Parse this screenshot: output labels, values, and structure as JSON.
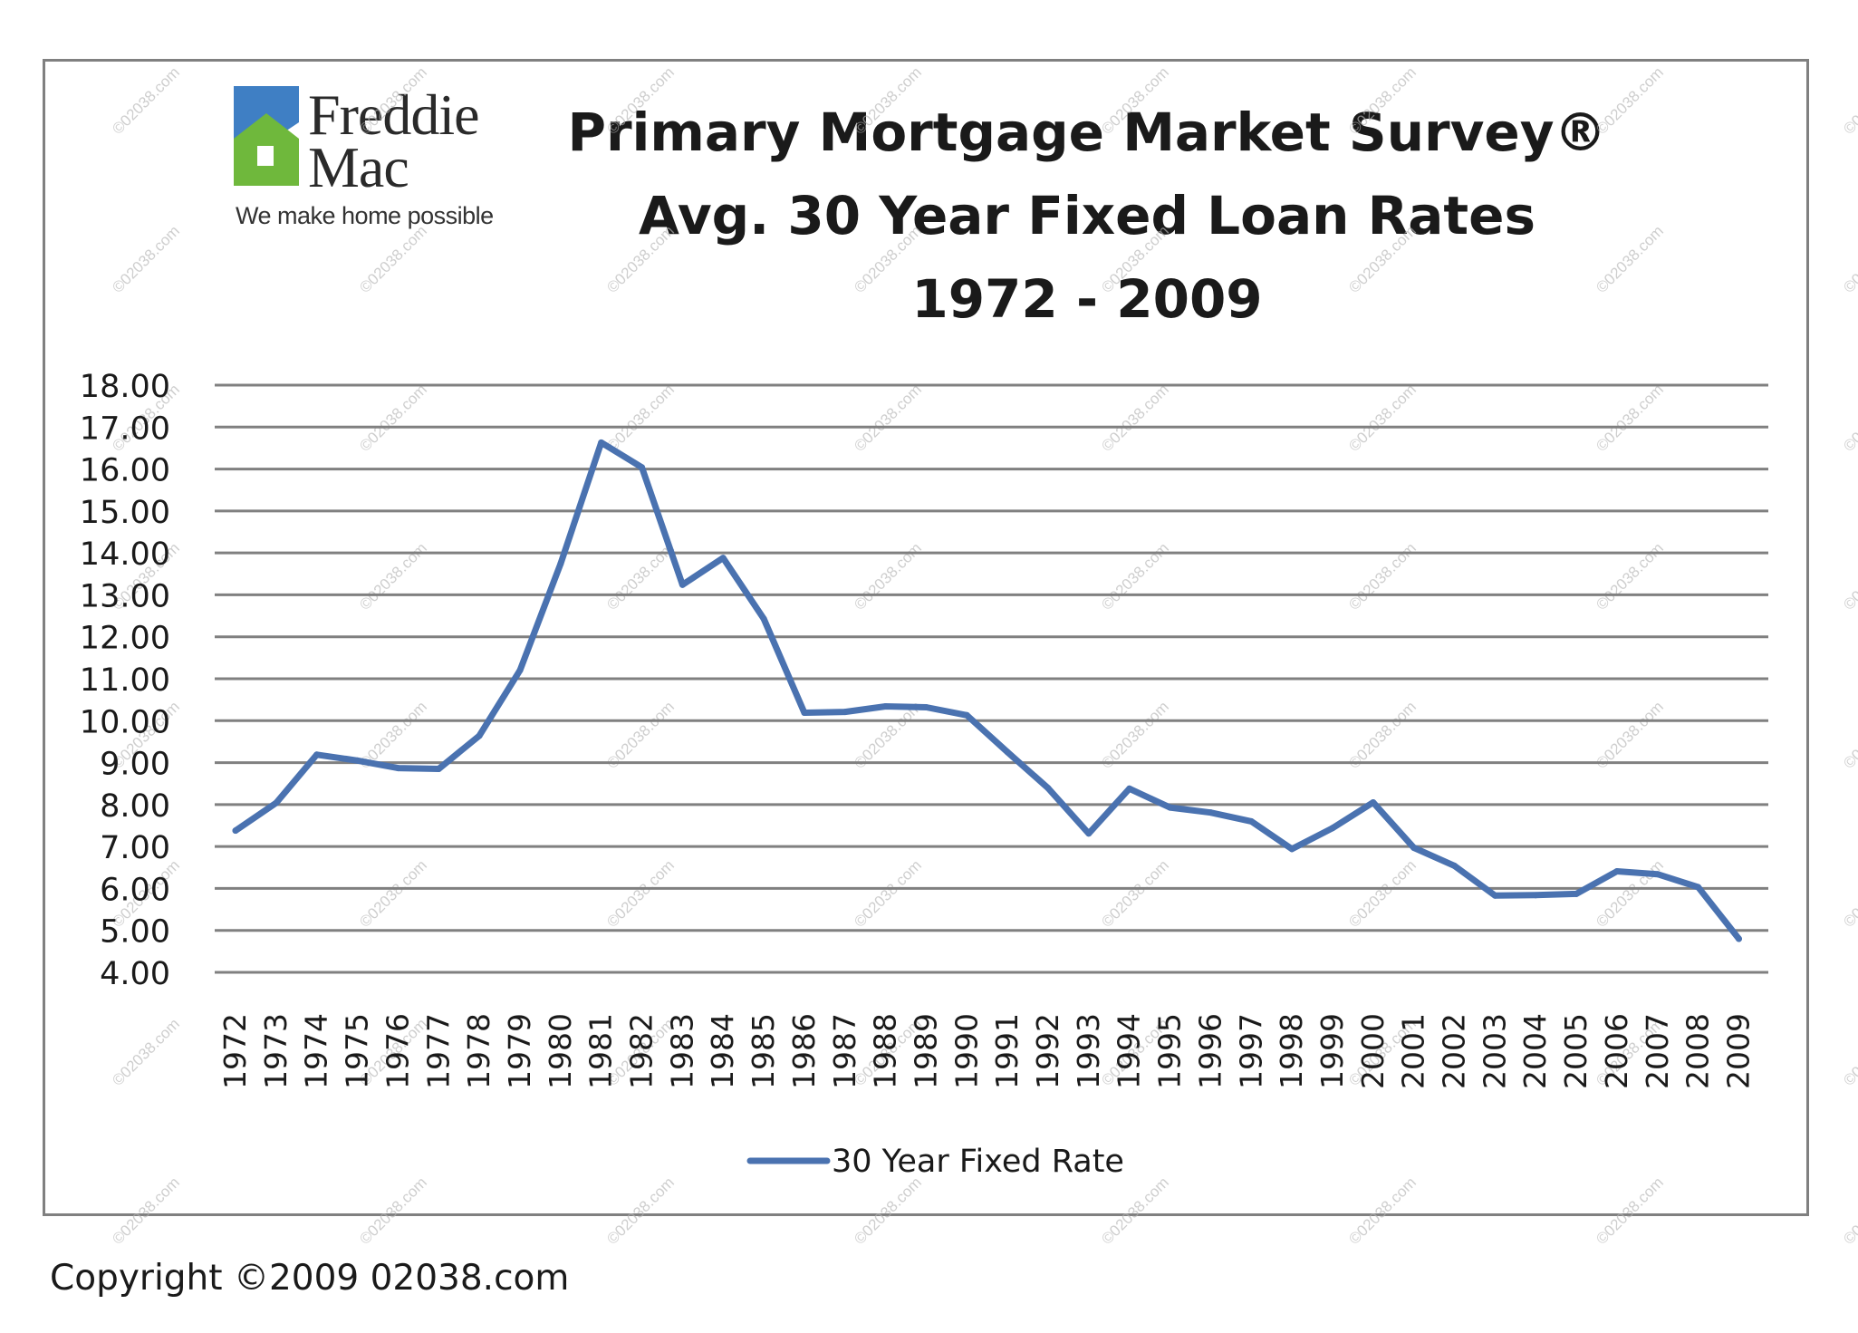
{
  "logo": {
    "name_line1": "Freddie",
    "name_line2": "Mac",
    "tagline": "We make home possible",
    "colors": {
      "blue": "#3f7fc4",
      "green": "#6fb83c"
    }
  },
  "copyright": "Copyright ©2009 02038.com",
  "chart_data": {
    "type": "line",
    "title": [
      "Primary Mortgage Market Survey®",
      "Avg. 30 Year Fixed Loan Rates",
      "1972 - 2009"
    ],
    "xlabel": "",
    "ylabel": "",
    "x": [
      "1972",
      "1973",
      "1974",
      "1975",
      "1976",
      "1977",
      "1978",
      "1979",
      "1980",
      "1981",
      "1982",
      "1983",
      "1984",
      "1985",
      "1986",
      "1987",
      "1988",
      "1989",
      "1990",
      "1991",
      "1992",
      "1993",
      "1994",
      "1995",
      "1996",
      "1997",
      "1998",
      "1999",
      "2000",
      "2001",
      "2002",
      "2003",
      "2004",
      "2005",
      "2006",
      "2007",
      "2008",
      "2009"
    ],
    "series": [
      {
        "name": "30 Year Fixed Rate",
        "color": "#4a72b0",
        "values": [
          7.38,
          8.04,
          9.19,
          9.05,
          8.87,
          8.85,
          9.64,
          11.2,
          13.74,
          16.63,
          16.04,
          13.24,
          13.88,
          12.43,
          10.19,
          10.21,
          10.34,
          10.32,
          10.13,
          9.25,
          8.39,
          7.31,
          8.38,
          7.93,
          7.81,
          7.6,
          6.94,
          7.44,
          8.05,
          6.97,
          6.54,
          5.83,
          5.84,
          5.87,
          6.41,
          6.34,
          6.03,
          4.8
        ]
      }
    ],
    "y_ticks": [
      "18.00",
      "17.00",
      "16.00",
      "15.00",
      "14.00",
      "13.00",
      "12.00",
      "11.00",
      "10.00",
      "9.00",
      "8.00",
      "7.00",
      "6.00",
      "5.00",
      "4.00"
    ],
    "ylim": [
      4,
      18
    ],
    "grid": true,
    "legend_position": "bottom-center",
    "colors": {
      "line": "#4a72b0",
      "grid": "#808080",
      "watermark": "#b5b5b5"
    }
  }
}
